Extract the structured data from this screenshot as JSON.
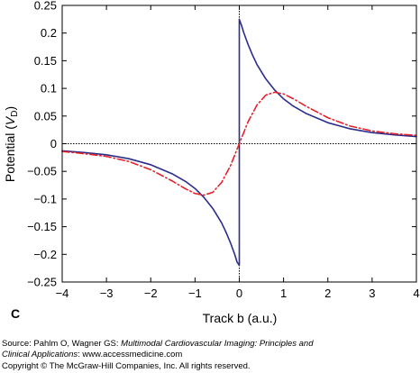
{
  "chart_data": {
    "type": "line",
    "ylabel_main": "Potential (",
    "ylabel_var": "V",
    "ylabel_sub": "D",
    "ylabel_end": ")",
    "xlabel": "Track b (a.u.)",
    "panel_label": "C",
    "xlim": [
      -4,
      4
    ],
    "ylim": [
      -0.25,
      0.25
    ],
    "xticks": [
      -4,
      -3,
      -2,
      -1,
      0,
      1,
      2,
      3,
      4
    ],
    "yticks": [
      -0.25,
      -0.2,
      -0.15,
      -0.1,
      -0.05,
      0,
      0.05,
      0.1,
      0.15,
      0.2,
      0.25
    ],
    "xtick_labels": [
      "−4",
      "−3",
      "−2",
      "−1",
      "0",
      "1",
      "2",
      "3",
      "4"
    ],
    "ytick_labels": [
      "−0.25",
      "−0.2",
      "−0.15",
      "−0.1",
      "−0.05",
      "0",
      "0.05",
      "0.1",
      "0.15",
      "0.2",
      "0.25"
    ],
    "grid": false,
    "reference_lines": {
      "x": 0,
      "y": 0,
      "style": "dotted"
    },
    "series": [
      {
        "style": "solid",
        "color": "#2b2d8a",
        "x": [
          -4,
          -3.5,
          -3,
          -2.5,
          -2,
          -1.5,
          -1.2,
          -1,
          -0.8,
          -0.6,
          -0.4,
          -0.3,
          -0.2,
          -0.1,
          -0.05,
          0,
          0,
          0.05,
          0.1,
          0.2,
          0.3,
          0.4,
          0.6,
          0.8,
          1,
          1.2,
          1.5,
          2,
          2.5,
          3,
          3.5,
          4
        ],
        "y": [
          -0.013,
          -0.016,
          -0.02,
          -0.027,
          -0.038,
          -0.055,
          -0.069,
          -0.081,
          -0.097,
          -0.117,
          -0.143,
          -0.16,
          -0.179,
          -0.201,
          -0.214,
          -0.22,
          0.225,
          0.214,
          0.201,
          0.179,
          0.16,
          0.143,
          0.117,
          0.097,
          0.081,
          0.069,
          0.055,
          0.038,
          0.027,
          0.02,
          0.016,
          0.013
        ]
      },
      {
        "style": "dash-dot",
        "color": "#e8202a",
        "x": [
          -4,
          -3.5,
          -3,
          -2.5,
          -2,
          -1.5,
          -1.25,
          -1,
          -0.8,
          -0.6,
          -0.4,
          -0.2,
          0,
          0.2,
          0.4,
          0.6,
          0.8,
          1,
          1.25,
          1.5,
          2,
          2.5,
          3,
          3.5,
          4
        ],
        "y": [
          -0.014,
          -0.018,
          -0.023,
          -0.032,
          -0.047,
          -0.068,
          -0.08,
          -0.09,
          -0.093,
          -0.088,
          -0.07,
          -0.04,
          0,
          0.04,
          0.07,
          0.088,
          0.093,
          0.09,
          0.08,
          0.068,
          0.047,
          0.032,
          0.023,
          0.018,
          0.015
        ]
      }
    ]
  },
  "caption": {
    "source_prefix": "Source: Pahlm O, Wagner GS: ",
    "source_title_1": "Multimodal Cardiovascular Imaging: Principles and",
    "source_title_2": "Clinical Applications",
    "source_suffix": ": www.accessmedicine.com",
    "copyright": "Copyright © The McGraw-Hill Companies, Inc. All rights reserved."
  }
}
